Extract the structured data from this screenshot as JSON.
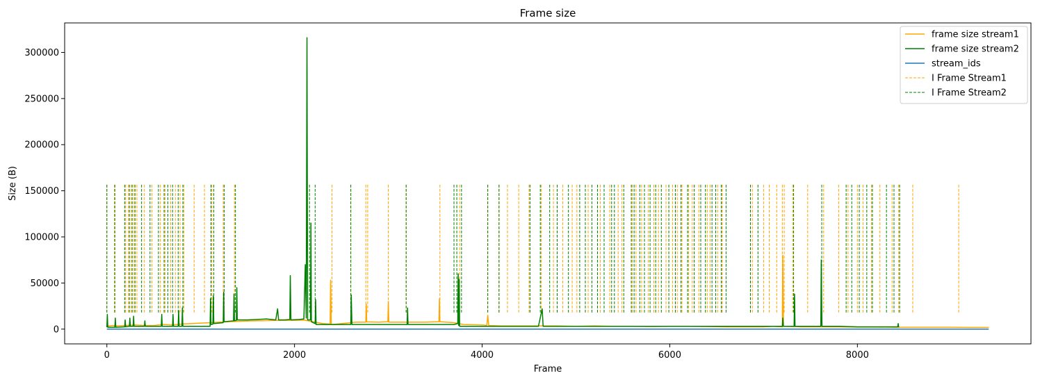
{
  "chart_data": {
    "type": "line",
    "title": "Frame size",
    "xlabel": "Frame",
    "ylabel": "Size (B)",
    "xlim": [
      -450,
      9850
    ],
    "ylim": [
      -16000,
      332000
    ],
    "xticks": [
      0,
      2000,
      4000,
      6000,
      8000
    ],
    "yticks": [
      0,
      50000,
      100000,
      150000,
      200000,
      250000,
      300000
    ],
    "grid": false,
    "legend_position": "top-right",
    "series": [
      {
        "name": "frame size stream1",
        "color": "#ffa500",
        "style": "solid",
        "points": [
          [
            0,
            3000
          ],
          [
            60,
            4000
          ],
          [
            100,
            3500
          ],
          [
            200,
            4000
          ],
          [
            300,
            4500
          ],
          [
            400,
            4000
          ],
          [
            500,
            4000
          ],
          [
            600,
            5000
          ],
          [
            700,
            4500
          ],
          [
            800,
            5500
          ],
          [
            900,
            6000
          ],
          [
            1000,
            6500
          ],
          [
            1100,
            7000
          ],
          [
            1200,
            7500
          ],
          [
            1300,
            8000
          ],
          [
            1400,
            8500
          ],
          [
            1500,
            8800
          ],
          [
            1600,
            9000
          ],
          [
            1700,
            9200
          ],
          [
            1800,
            9400
          ],
          [
            1900,
            9500
          ],
          [
            2000,
            9500
          ],
          [
            2100,
            9800
          ],
          [
            2200,
            8000
          ],
          [
            2300,
            6000
          ],
          [
            2380,
            5500
          ],
          [
            2385,
            53000
          ],
          [
            2392,
            5000
          ],
          [
            2450,
            5500
          ],
          [
            2600,
            7000
          ],
          [
            2650,
            7500
          ],
          [
            2760,
            7500
          ],
          [
            2765,
            27000
          ],
          [
            2770,
            7800
          ],
          [
            2900,
            7500
          ],
          [
            2995,
            8000
          ],
          [
            3000,
            30000
          ],
          [
            3005,
            7500
          ],
          [
            3200,
            7500
          ],
          [
            3400,
            7500
          ],
          [
            3540,
            8000
          ],
          [
            3545,
            33000
          ],
          [
            3550,
            8000
          ],
          [
            3700,
            7000
          ],
          [
            3800,
            5000
          ],
          [
            4000,
            4500
          ],
          [
            4050,
            4000
          ],
          [
            4060,
            15000
          ],
          [
            4070,
            4000
          ],
          [
            4200,
            3500
          ],
          [
            4400,
            3500
          ],
          [
            4600,
            3500
          ],
          [
            4800,
            3500
          ],
          [
            5000,
            3000
          ],
          [
            5200,
            3500
          ],
          [
            5400,
            3000
          ],
          [
            5600,
            3000
          ],
          [
            5800,
            2800
          ],
          [
            6000,
            3000
          ],
          [
            6200,
            3000
          ],
          [
            6400,
            2800
          ],
          [
            6600,
            2500
          ],
          [
            6800,
            2500
          ],
          [
            7000,
            2500
          ],
          [
            7100,
            3000
          ],
          [
            7200,
            2500
          ],
          [
            7205,
            80000
          ],
          [
            7212,
            3000
          ],
          [
            7300,
            2800
          ],
          [
            7400,
            2500
          ],
          [
            7600,
            2500
          ],
          [
            7800,
            2500
          ],
          [
            8000,
            2200
          ],
          [
            8200,
            2200
          ],
          [
            8400,
            2000
          ],
          [
            8600,
            2000
          ],
          [
            8800,
            2000
          ],
          [
            9000,
            2000
          ],
          [
            9200,
            1800
          ],
          [
            9400,
            1800
          ]
        ]
      },
      {
        "name": "frame size stream2",
        "color": "#008000",
        "style": "solid",
        "points": [
          [
            0,
            2000
          ],
          [
            5,
            16000
          ],
          [
            10,
            2000
          ],
          [
            85,
            2000
          ],
          [
            90,
            12000
          ],
          [
            95,
            2000
          ],
          [
            190,
            2500
          ],
          [
            195,
            10000
          ],
          [
            200,
            2500
          ],
          [
            240,
            3000
          ],
          [
            245,
            12000
          ],
          [
            250,
            3000
          ],
          [
            280,
            3000
          ],
          [
            285,
            14000
          ],
          [
            290,
            3000
          ],
          [
            400,
            3000
          ],
          [
            405,
            9000
          ],
          [
            410,
            3000
          ],
          [
            580,
            3000
          ],
          [
            585,
            16000
          ],
          [
            590,
            3000
          ],
          [
            700,
            3000
          ],
          [
            705,
            16000
          ],
          [
            710,
            3000
          ],
          [
            760,
            3000
          ],
          [
            765,
            20000
          ],
          [
            770,
            3000
          ],
          [
            800,
            3000
          ],
          [
            805,
            23000
          ],
          [
            810,
            3000
          ],
          [
            1100,
            3000
          ],
          [
            1105,
            33000
          ],
          [
            1110,
            5000
          ],
          [
            1130,
            5500
          ],
          [
            1135,
            36000
          ],
          [
            1140,
            6000
          ],
          [
            1240,
            7000
          ],
          [
            1245,
            40000
          ],
          [
            1250,
            8000
          ],
          [
            1350,
            9000
          ],
          [
            1355,
            38000
          ],
          [
            1360,
            9000
          ],
          [
            1380,
            9500
          ],
          [
            1385,
            45000
          ],
          [
            1390,
            10000
          ],
          [
            1500,
            10000
          ],
          [
            1600,
            10500
          ],
          [
            1700,
            11000
          ],
          [
            1800,
            10000
          ],
          [
            1820,
            22000
          ],
          [
            1830,
            10000
          ],
          [
            1900,
            10000
          ],
          [
            1950,
            10500
          ],
          [
            1955,
            58000
          ],
          [
            1962,
            10000
          ],
          [
            2050,
            10500
          ],
          [
            2100,
            11000
          ],
          [
            2115,
            70000
          ],
          [
            2125,
            12000
          ],
          [
            2133,
            316000
          ],
          [
            2140,
            10000
          ],
          [
            2170,
            10000
          ],
          [
            2175,
            115000
          ],
          [
            2180,
            8000
          ],
          [
            2220,
            6000
          ],
          [
            2225,
            32000
          ],
          [
            2230,
            5000
          ],
          [
            2400,
            5000
          ],
          [
            2600,
            5000
          ],
          [
            2605,
            37000
          ],
          [
            2612,
            5000
          ],
          [
            2800,
            5000
          ],
          [
            3000,
            5000
          ],
          [
            3200,
            5000
          ],
          [
            3205,
            23000
          ],
          [
            3210,
            5000
          ],
          [
            3700,
            5000
          ],
          [
            3740,
            6000
          ],
          [
            3745,
            60000
          ],
          [
            3750,
            4000
          ],
          [
            3755,
            54000
          ],
          [
            3760,
            3000
          ],
          [
            3800,
            3000
          ],
          [
            4000,
            3000
          ],
          [
            4200,
            3000
          ],
          [
            4400,
            3000
          ],
          [
            4600,
            3000
          ],
          [
            4640,
            22000
          ],
          [
            4650,
            3000
          ],
          [
            4800,
            3000
          ],
          [
            5000,
            3000
          ],
          [
            5200,
            3000
          ],
          [
            5400,
            3000
          ],
          [
            5600,
            3000
          ],
          [
            5800,
            3000
          ],
          [
            6000,
            3000
          ],
          [
            6200,
            3000
          ],
          [
            6400,
            3000
          ],
          [
            6600,
            3000
          ],
          [
            6800,
            3000
          ],
          [
            7000,
            3000
          ],
          [
            7200,
            3000
          ],
          [
            7205,
            12000
          ],
          [
            7210,
            3000
          ],
          [
            7325,
            3000
          ],
          [
            7330,
            38000
          ],
          [
            7335,
            3000
          ],
          [
            7400,
            3000
          ],
          [
            7610,
            3000
          ],
          [
            7615,
            75000
          ],
          [
            7622,
            3000
          ],
          [
            7800,
            3000
          ],
          [
            8000,
            2500
          ],
          [
            8200,
            2500
          ],
          [
            8430,
            2500
          ],
          [
            8435,
            6000
          ],
          [
            8440,
            2000
          ]
        ]
      },
      {
        "name": "stream_ids",
        "color": "#1f77b4",
        "style": "solid",
        "points": [
          [
            0,
            1
          ],
          [
            9400,
            1
          ]
        ]
      },
      {
        "name": "I Frame Stream1",
        "color": "#ffa500",
        "style": "dashed",
        "ymin": 18000,
        "ymax": 157000,
        "x": [
          0,
          80,
          200,
          230,
          260,
          290,
          320,
          400,
          480,
          570,
          620,
          680,
          730,
          780,
          820,
          930,
          1040,
          1120,
          1240,
          1360,
          2400,
          2600,
          2760,
          2780,
          3000,
          3190,
          3550,
          3760,
          4060,
          4180,
          4270,
          4390,
          4500,
          4630,
          4760,
          4860,
          4960,
          5010,
          5130,
          5260,
          5360,
          5450,
          5490,
          5600,
          5640,
          5700,
          5770,
          5830,
          5880,
          5960,
          6030,
          6080,
          6130,
          6200,
          6240,
          6310,
          6400,
          6430,
          6510,
          6560,
          6880,
          7000,
          7060,
          7140,
          7200,
          7220,
          7310,
          7470,
          7640,
          7800,
          7900,
          8000,
          8060,
          8150,
          8240,
          8370,
          8440,
          8590,
          9080
        ]
      },
      {
        "name": "I Frame Stream2",
        "color": "#008000",
        "style": "dashed",
        "ymin": 18000,
        "ymax": 157000,
        "x": [
          0,
          85,
          190,
          240,
          270,
          300,
          370,
          460,
          550,
          610,
          650,
          700,
          760,
          810,
          1110,
          1140,
          1250,
          1370,
          2160,
          2220,
          2600,
          3190,
          3700,
          3730,
          3780,
          4060,
          4180,
          4510,
          4620,
          4720,
          4800,
          4920,
          5040,
          5100,
          5170,
          5230,
          5300,
          5380,
          5410,
          5510,
          5590,
          5620,
          5680,
          5730,
          5790,
          5850,
          5910,
          5990,
          6060,
          6120,
          6190,
          6260,
          6330,
          6380,
          6450,
          6490,
          6550,
          6600,
          6860,
          6940,
          7320,
          7620,
          7880,
          7940,
          8020,
          8100,
          8160,
          8310,
          8390,
          8450
        ]
      }
    ]
  }
}
